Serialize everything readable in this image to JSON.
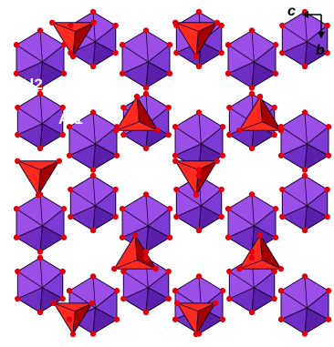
{
  "labels": {
    "al2_left": "Al2",
    "al2_right": "Al2",
    "al1": "Al1"
  },
  "axes": {
    "c": "c",
    "b": "b"
  },
  "colors": {
    "octahedron_light": "#9b4fe6",
    "octahedron_dark": "#5a1fa8",
    "tetrahedron_light": "#ff2a1f",
    "tetrahedron_dark": "#a40000",
    "atom": "#e0000b",
    "edge": "#1a0033"
  }
}
